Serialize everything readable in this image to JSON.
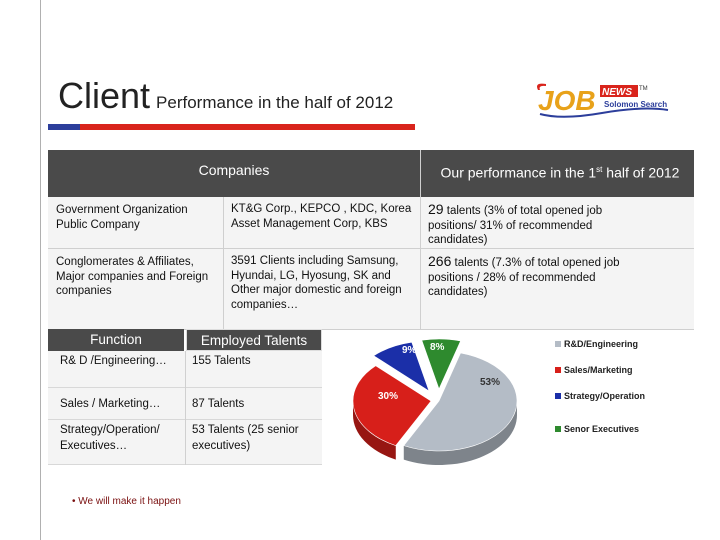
{
  "header": {
    "title_main": "Client",
    "title_sub": "Performance  in the half of 2012",
    "logo_text_main": "JOB",
    "logo_text_news": "NEWS",
    "logo_text_sub": "Solomon Search",
    "logo_tm": "TM"
  },
  "companies_table": {
    "header_left": "Companies",
    "header_right_pre": "Our performance in the 1",
    "header_right_sup": "st",
    "header_right_post": " half of 2012",
    "rows": [
      {
        "category": "Government Organization Public Company",
        "clients": "KT&G Corp., KEPCO , KDC, Korea Asset Management Corp, KBS",
        "perf_number": "29",
        "perf_text": " talents (3% of total opened job positions/  31%  of recommended candidates)"
      },
      {
        "category": "Conglomerates & Affiliates, Major companies and Foreign companies",
        "clients": "3591 Clients including Samsung, Hyundai, LG, Hyosung, SK and Other  major domestic and foreign companies…",
        "perf_number": "266",
        "perf_text": " talents  (7.3% of total opened job positions / 28% of recommended candidates)"
      }
    ]
  },
  "function_table": {
    "header_function": "Function",
    "header_employed": "Employed Talents",
    "rows": [
      {
        "function": "R& D /Engineering…",
        "talents": "155 Talents"
      },
      {
        "function": "Sales / Marketing…",
        "talents": "87 Talents"
      },
      {
        "function": "Strategy/Operation/ Executives…",
        "talents": "53 Talents (25  senior executives)"
      }
    ]
  },
  "chart_data": {
    "type": "pie",
    "categories": [
      "R&D/Engineering",
      "Sales/Marketing",
      "Strategy/Operation",
      "Senor Executives"
    ],
    "values": [
      53,
      30,
      9,
      8
    ],
    "labels": [
      "53%",
      "30%",
      "9%",
      "8%"
    ],
    "colors": [
      "#b4bcc6",
      "#d71f1a",
      "#1b2fa8",
      "#2e8a2e"
    ],
    "legend_placement": "right"
  },
  "footer": {
    "tagline": "• We will make it happen"
  }
}
